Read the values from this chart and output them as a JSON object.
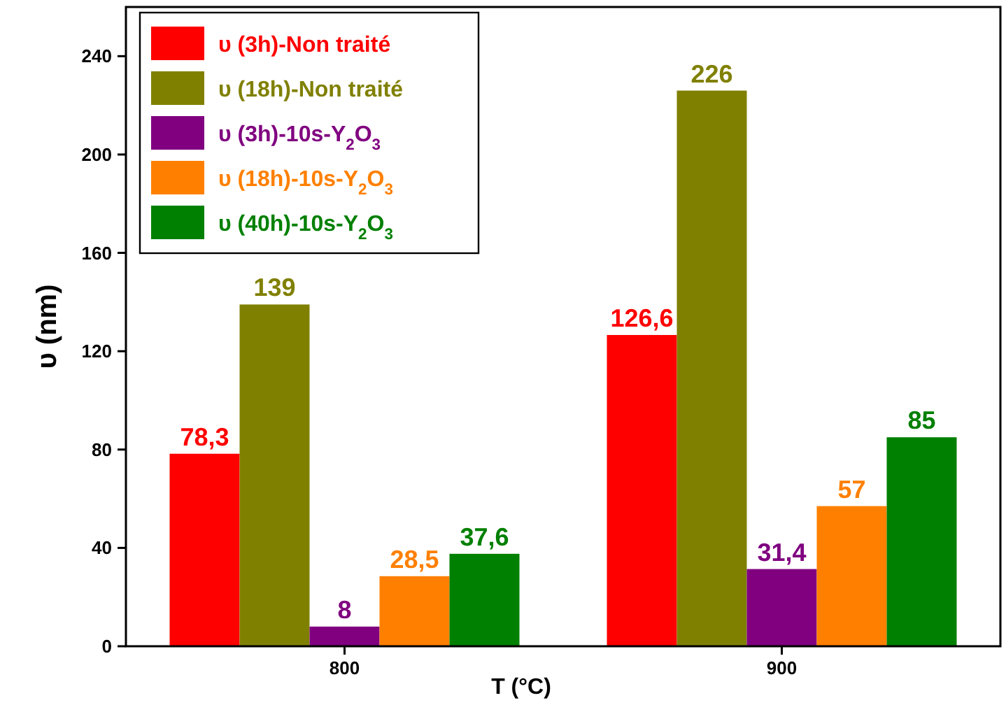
{
  "chart_data": {
    "type": "bar",
    "xlabel": "T (°C)",
    "ylabel": "υ (nm)",
    "categories": [
      "800",
      "900"
    ],
    "ylim": [
      0,
      260
    ],
    "yticks": [
      0,
      40,
      80,
      120,
      160,
      200,
      240
    ],
    "grid": false,
    "legend": "top left",
    "series": [
      {
        "name": "υ (3h)-Non traité",
        "color": "#ff0000",
        "values": [
          78.3,
          126.6
        ],
        "value_labels": [
          "78,3",
          "126,6"
        ]
      },
      {
        "name": "υ (18h)-Non traité",
        "color": "#808000",
        "values": [
          139,
          226
        ],
        "value_labels": [
          "139",
          "226"
        ]
      },
      {
        "name": "υ (3h)-10s-Y$_{2}$O$_{3}$",
        "color": "#800080",
        "values": [
          8,
          31.4
        ],
        "value_labels": [
          "8",
          "31,4"
        ]
      },
      {
        "name": "υ (18h)-10s-Y$_{2}$O$_{3}$",
        "color": "#ff8000",
        "values": [
          28.5,
          57
        ],
        "value_labels": [
          "28,5",
          "57"
        ]
      },
      {
        "name": "υ (40h)-10s-Y$_{2}$O$_{3}$",
        "color": "#008000",
        "values": [
          37.6,
          85
        ],
        "value_labels": [
          "37,6",
          "85"
        ]
      }
    ]
  }
}
